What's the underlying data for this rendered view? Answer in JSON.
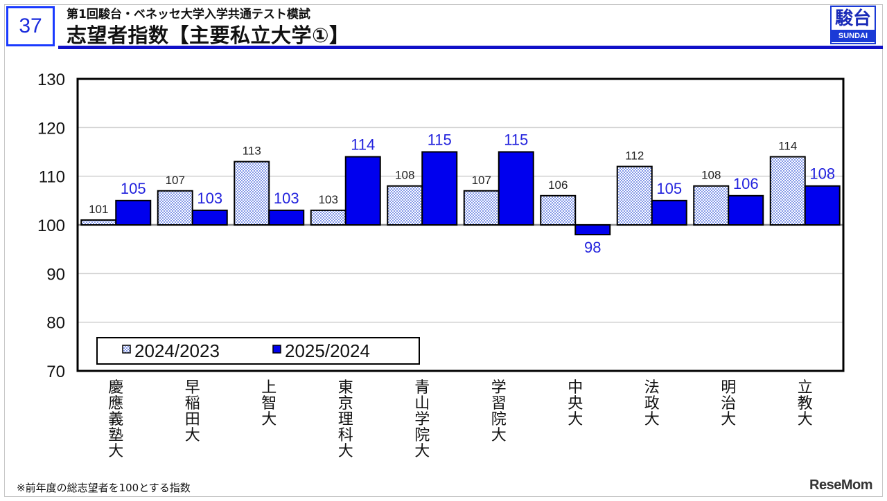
{
  "header": {
    "page_number": "37",
    "subtitle": "第1回駿台・ベネッセ大学入学共通テスト模試",
    "title": "志望者指数【主要私立大学①】",
    "logo_text": "駿台",
    "logo_subtext": "SUNDAI"
  },
  "footnote": "※前年度の総志望者を100とする指数",
  "watermark": "ReseMom",
  "colors": {
    "accent": "#1010c8",
    "series1_fill": "#9fb4ff",
    "series2_fill": "#0000ee",
    "value_label_series2": "#2222dd"
  },
  "chart_data": {
    "type": "bar",
    "categories": [
      "慶應義塾大",
      "早稲田大",
      "上智大",
      "東京理科大",
      "青山学院大",
      "学習院大",
      "中央大",
      "法政大",
      "明治大",
      "立教大"
    ],
    "series": [
      {
        "name": "2024/2023",
        "values": [
          101,
          107,
          113,
          103,
          108,
          107,
          106,
          112,
          108,
          114
        ],
        "pattern": "dotted"
      },
      {
        "name": "2025/2024",
        "values": [
          105,
          103,
          103,
          114,
          115,
          115,
          98,
          105,
          106,
          108
        ],
        "pattern": "solid"
      }
    ],
    "ylim": [
      70,
      130
    ],
    "yticks": [
      70,
      80,
      90,
      100,
      110,
      120,
      130
    ],
    "baseline": 100,
    "grid": true,
    "legend": "bottom-left",
    "xlabel": "",
    "ylabel": ""
  }
}
